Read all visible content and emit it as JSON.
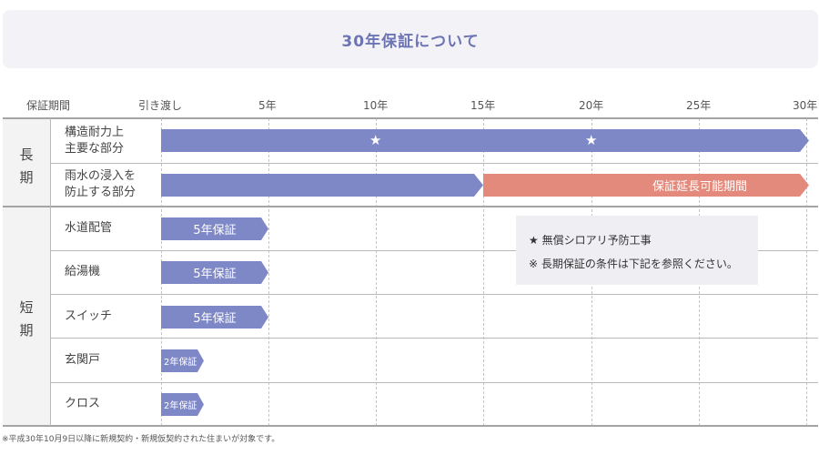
{
  "title": "30年保証について",
  "axis": {
    "header": "保証期間",
    "ticks": [
      "引き渡し",
      "5年",
      "10年",
      "15年",
      "20年",
      "25年",
      "30年"
    ]
  },
  "groups": {
    "long_1": "長",
    "long_2": "期",
    "short_1": "短",
    "short_2": "期"
  },
  "rows": [
    {
      "label_1": "構造耐力上",
      "label_2": "主要な部分",
      "bar_years": 30,
      "stars_at_years": [
        10,
        20
      ]
    },
    {
      "label_1": "雨水の浸入を",
      "label_2": "防止する部分",
      "bar_years": 15,
      "extension_label": "保証延長可能期間",
      "extension_years": [
        15,
        30
      ]
    },
    {
      "label": "水道配管",
      "bar_label": "5年保証",
      "bar_years": 5
    },
    {
      "label": "給湯機",
      "bar_label": "5年保証",
      "bar_years": 5
    },
    {
      "label": "スイッチ",
      "bar_label": "5年保証",
      "bar_years": 5
    },
    {
      "label": "玄関戸",
      "bar_label": "2年保証",
      "bar_years": 2
    },
    {
      "label": "クロス",
      "bar_label": "2年保証",
      "bar_years": 2
    }
  ],
  "legend": {
    "star_note": "★ 無償シロアリ予防工事",
    "long_term_note": "※ 長期保証の条件は下記を参照ください。"
  },
  "footnote": "※平成30年10月9日以降に新規契約・新規仮契約された住まいが対象です。",
  "colors": {
    "long_bar": "#7f88c6",
    "extension_bar": "#e48a7c",
    "title_text": "#6d74b4"
  }
}
